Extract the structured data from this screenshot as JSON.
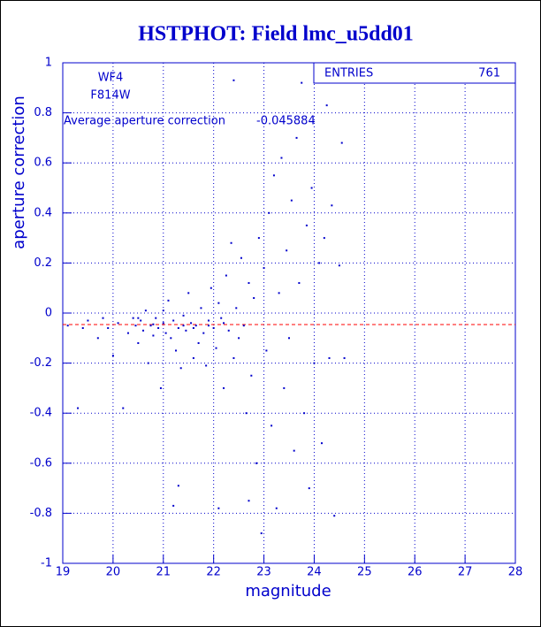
{
  "chart_data": {
    "type": "scatter",
    "title": "HSTPHOT: Field lmc_u5dd01",
    "xlabel": "magnitude",
    "ylabel": "aperture correction",
    "xlim": [
      19,
      28
    ],
    "ylim": [
      -1,
      1
    ],
    "xticks": [
      19,
      20,
      21,
      22,
      23,
      24,
      25,
      26,
      27,
      28
    ],
    "yticks": [
      -1,
      -0.8,
      -0.6,
      -0.4,
      -0.2,
      0,
      0.2,
      0.4,
      0.6,
      0.8,
      1
    ],
    "grid": true,
    "color": "#0000cc",
    "annotations": [
      "WF4",
      "F814W",
      "Average aperture correction"
    ],
    "average": -0.045884,
    "average_color": "#ff0000",
    "stats": {
      "label": "ENTRIES",
      "value": 761
    },
    "x": [
      19.1,
      19.3,
      19.4,
      19.5,
      19.7,
      19.8,
      19.9,
      20.0,
      20.1,
      20.2,
      20.3,
      20.4,
      20.45,
      20.5,
      20.55,
      20.6,
      20.65,
      20.7,
      20.75,
      20.8,
      20.85,
      20.9,
      20.95,
      21.0,
      21.05,
      21.1,
      21.15,
      21.2,
      21.25,
      21.3,
      21.35,
      21.4,
      21.45,
      21.5,
      21.55,
      21.6,
      21.65,
      21.7,
      21.75,
      21.8,
      21.85,
      21.9,
      21.95,
      22.0,
      22.05,
      22.1,
      22.15,
      22.2,
      22.25,
      22.3,
      22.35,
      22.4,
      22.45,
      22.5,
      22.55,
      22.6,
      22.65,
      22.7,
      22.75,
      22.8,
      22.85,
      22.9,
      22.95,
      23.0,
      23.05,
      23.1,
      23.15,
      23.2,
      23.25,
      23.3,
      23.35,
      23.4,
      23.45,
      23.5,
      23.55,
      23.6,
      23.65,
      23.7,
      23.75,
      23.8,
      23.85,
      23.9,
      23.95,
      24.0,
      24.1,
      24.15,
      24.2,
      24.25,
      24.3,
      24.35,
      24.4,
      24.5,
      24.6,
      24.55,
      22.4,
      21.3,
      21.2,
      22.1,
      22.7,
      21.0,
      20.5,
      21.6,
      21.9,
      22.2,
      20.8,
      21.4
    ],
    "y": [
      -0.05,
      -0.38,
      -0.06,
      -0.03,
      -0.1,
      -0.02,
      -0.06,
      -0.17,
      -0.04,
      -0.38,
      -0.08,
      -0.02,
      -0.05,
      -0.12,
      -0.03,
      -0.07,
      0.01,
      -0.2,
      -0.05,
      -0.09,
      -0.02,
      -0.06,
      -0.3,
      -0.04,
      -0.08,
      0.05,
      -0.1,
      -0.03,
      -0.15,
      -0.06,
      -0.22,
      -0.01,
      -0.07,
      0.08,
      -0.04,
      -0.18,
      -0.05,
      -0.12,
      0.02,
      -0.08,
      -0.21,
      -0.03,
      0.1,
      -0.06,
      -0.14,
      0.04,
      -0.02,
      -0.3,
      0.15,
      -0.07,
      0.28,
      -0.18,
      0.02,
      -0.1,
      0.22,
      -0.05,
      -0.4,
      0.12,
      -0.25,
      0.06,
      -0.6,
      0.3,
      -0.88,
      0.18,
      -0.15,
      0.4,
      -0.45,
      0.55,
      -0.78,
      0.08,
      0.62,
      -0.3,
      0.25,
      -0.1,
      0.45,
      -0.55,
      0.7,
      0.12,
      0.92,
      -0.4,
      0.35,
      -0.7,
      0.5,
      -0.2,
      0.2,
      -0.52,
      0.3,
      0.83,
      -0.18,
      0.43,
      -0.81,
      0.19,
      -0.18,
      0.68,
      0.93,
      -0.69,
      -0.77,
      -0.78,
      -0.75,
      0.01,
      -0.02,
      -0.06,
      -0.05,
      -0.04,
      -0.045,
      -0.05
    ]
  }
}
